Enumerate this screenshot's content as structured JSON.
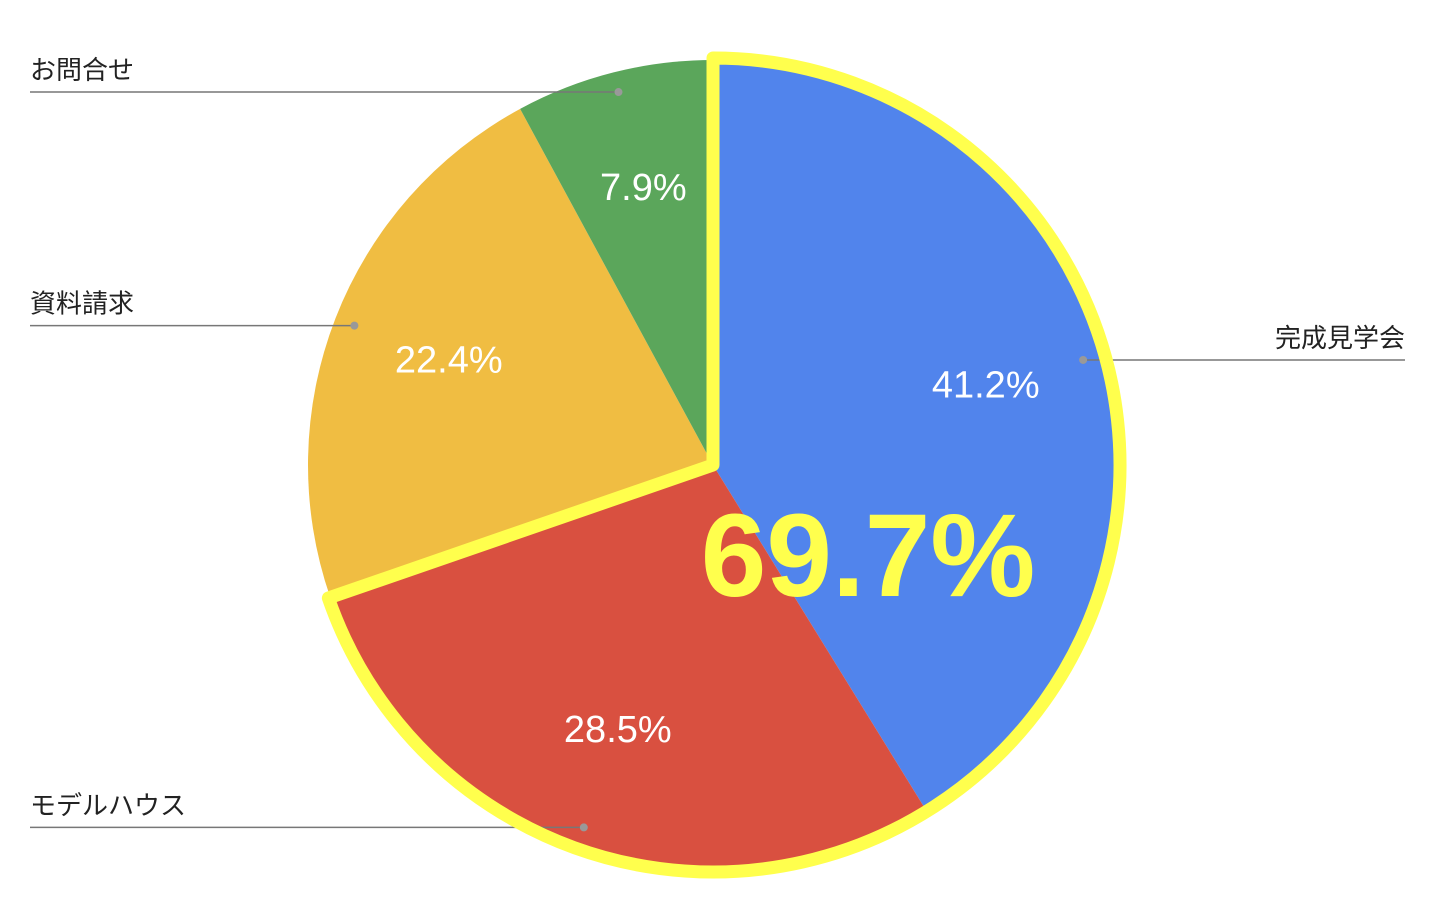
{
  "chart_data": {
    "type": "pie",
    "categories": [
      "完成見学会",
      "モデルハウス",
      "資料請求",
      "お問合せ"
    ],
    "values": [
      41.2,
      28.5,
      22.4,
      7.9
    ],
    "value_labels": [
      "41.2%",
      "28.5%",
      "22.4%",
      "7.9%"
    ],
    "colors": [
      "#5184ec",
      "#d95040",
      "#f0bd42",
      "#5ba65b"
    ],
    "highlight": {
      "value": 69.7,
      "label": "69.7%",
      "slices": [
        0,
        1
      ],
      "color": "#ffff4d"
    }
  }
}
